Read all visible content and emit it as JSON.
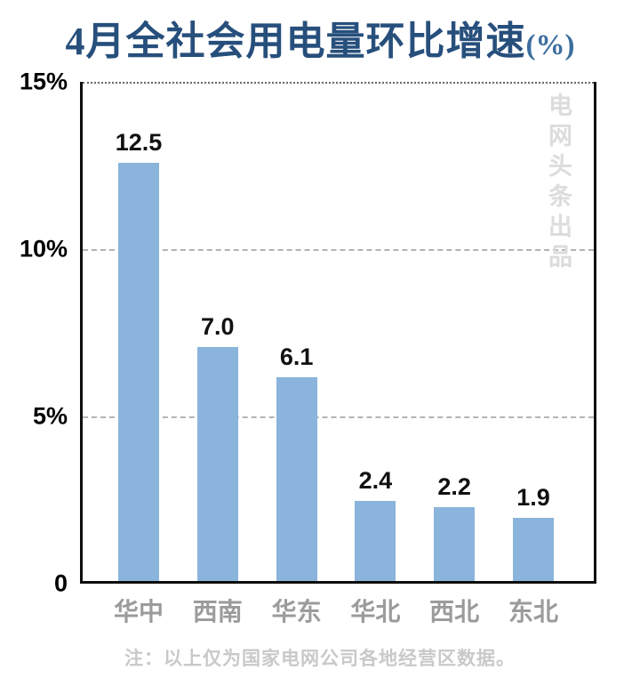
{
  "title": {
    "main": "4月全社会用电量环比增速",
    "unit": "(%)"
  },
  "watermark": "电网头条出品",
  "note": "注：以上仅为国家电网公司各地经营区数据。",
  "colors": {
    "bar": "#8ab4db",
    "title": "#274f7c",
    "title_unit": "#3c6e9e",
    "gridline": "#b3b3b3",
    "top_gridline": "#666666",
    "axis": "#0d0d0d",
    "category_label": "#9b9b9b",
    "value_label": "#111111",
    "watermark": "#dcdcdc",
    "note": "#c9c9c9"
  },
  "chart_data": {
    "type": "bar",
    "title": "4月全社会用电量环比增速(%)",
    "categories": [
      "华中",
      "西南",
      "华东",
      "华北",
      "西北",
      "东北"
    ],
    "values": [
      12.5,
      7.0,
      6.1,
      2.4,
      2.2,
      1.9
    ],
    "value_labels": [
      "12.5",
      "7.0",
      "6.1",
      "2.4",
      "2.2",
      "1.9"
    ],
    "xlabel": "",
    "ylabel": "",
    "ylim": [
      0,
      15
    ],
    "yticks": [
      {
        "value": 0,
        "label": "0"
      },
      {
        "value": 5,
        "label": "5%"
      },
      {
        "value": 10,
        "label": "10%"
      },
      {
        "value": 15,
        "label": "15%"
      }
    ],
    "grid": "horizontal, dashed at 5% and 10%, dotted at 15%",
    "legend": "none",
    "bar_color": "#8ab4db"
  }
}
